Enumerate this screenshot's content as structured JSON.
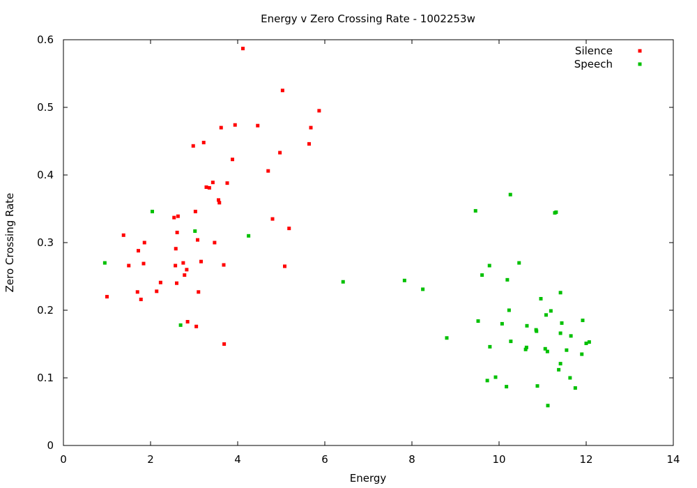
{
  "chart_data": {
    "type": "scatter",
    "title": "Energy v Zero Crossing Rate - 1002253w",
    "xlabel": "Energy",
    "ylabel": "Zero Crossing Rate",
    "xlim": [
      0,
      14
    ],
    "ylim": [
      0,
      0.6
    ],
    "xticks": [
      0,
      2,
      4,
      6,
      8,
      10,
      12,
      14
    ],
    "xtick_labels": [
      "0",
      "2",
      "4",
      "6",
      "8",
      "10",
      "12",
      "14"
    ],
    "yticks": [
      0,
      0.1,
      0.2,
      0.3,
      0.4,
      0.5,
      0.6
    ],
    "ytick_labels": [
      "0",
      "0.1",
      "0.2",
      "0.3",
      "0.4",
      "0.5",
      "0.6"
    ],
    "grid": false,
    "legend_position": "top-right",
    "series": [
      {
        "name": "Silence",
        "color": "#ff0000",
        "points": [
          [
            1.0,
            0.22
          ],
          [
            1.38,
            0.311
          ],
          [
            1.5,
            0.266
          ],
          [
            1.7,
            0.227
          ],
          [
            1.72,
            0.288
          ],
          [
            1.78,
            0.216
          ],
          [
            1.84,
            0.269
          ],
          [
            1.86,
            0.3
          ],
          [
            2.14,
            0.228
          ],
          [
            2.23,
            0.241
          ],
          [
            2.54,
            0.337
          ],
          [
            2.57,
            0.266
          ],
          [
            2.58,
            0.291
          ],
          [
            2.6,
            0.24
          ],
          [
            2.61,
            0.315
          ],
          [
            2.63,
            0.339
          ],
          [
            2.75,
            0.27
          ],
          [
            2.78,
            0.252
          ],
          [
            2.83,
            0.26
          ],
          [
            2.85,
            0.183
          ],
          [
            2.98,
            0.443
          ],
          [
            3.03,
            0.346
          ],
          [
            3.05,
            0.176
          ],
          [
            3.08,
            0.304
          ],
          [
            3.1,
            0.227
          ],
          [
            3.16,
            0.272
          ],
          [
            3.22,
            0.448
          ],
          [
            3.28,
            0.382
          ],
          [
            3.35,
            0.381
          ],
          [
            3.43,
            0.389
          ],
          [
            3.47,
            0.3
          ],
          [
            3.56,
            0.363
          ],
          [
            3.58,
            0.359
          ],
          [
            3.62,
            0.47
          ],
          [
            3.68,
            0.267
          ],
          [
            3.69,
            0.15
          ],
          [
            3.76,
            0.388
          ],
          [
            3.88,
            0.423
          ],
          [
            3.94,
            0.474
          ],
          [
            4.12,
            0.587
          ],
          [
            4.46,
            0.473
          ],
          [
            4.7,
            0.406
          ],
          [
            4.8,
            0.335
          ],
          [
            4.97,
            0.433
          ],
          [
            5.03,
            0.525
          ],
          [
            5.08,
            0.265
          ],
          [
            5.18,
            0.321
          ],
          [
            5.64,
            0.446
          ],
          [
            5.68,
            0.47
          ],
          [
            5.87,
            0.495
          ]
        ]
      },
      {
        "name": "Speech",
        "color": "#00c000",
        "points": [
          [
            0.95,
            0.27
          ],
          [
            2.04,
            0.346
          ],
          [
            2.69,
            0.178
          ],
          [
            3.02,
            0.317
          ],
          [
            4.25,
            0.31
          ],
          [
            6.42,
            0.242
          ],
          [
            7.83,
            0.244
          ],
          [
            8.25,
            0.231
          ],
          [
            8.8,
            0.159
          ],
          [
            9.46,
            0.347
          ],
          [
            9.52,
            0.184
          ],
          [
            9.61,
            0.252
          ],
          [
            9.73,
            0.096
          ],
          [
            9.78,
            0.266
          ],
          [
            9.79,
            0.146
          ],
          [
            9.92,
            0.101
          ],
          [
            10.07,
            0.18
          ],
          [
            10.17,
            0.087
          ],
          [
            10.19,
            0.245
          ],
          [
            10.23,
            0.2
          ],
          [
            10.26,
            0.371
          ],
          [
            10.27,
            0.154
          ],
          [
            10.46,
            0.27
          ],
          [
            10.61,
            0.142
          ],
          [
            10.63,
            0.145
          ],
          [
            10.64,
            0.177
          ],
          [
            10.85,
            0.171
          ],
          [
            10.86,
            0.169
          ],
          [
            10.88,
            0.088
          ],
          [
            10.96,
            0.217
          ],
          [
            11.06,
            0.143
          ],
          [
            11.08,
            0.193
          ],
          [
            11.11,
            0.139
          ],
          [
            11.12,
            0.059
          ],
          [
            11.19,
            0.199
          ],
          [
            11.28,
            0.344
          ],
          [
            11.31,
            0.345
          ],
          [
            11.37,
            0.112
          ],
          [
            11.41,
            0.226
          ],
          [
            11.41,
            0.166
          ],
          [
            11.41,
            0.121
          ],
          [
            11.44,
            0.181
          ],
          [
            11.55,
            0.141
          ],
          [
            11.63,
            0.1
          ],
          [
            11.65,
            0.162
          ],
          [
            11.75,
            0.085
          ],
          [
            11.9,
            0.135
          ],
          [
            11.92,
            0.185
          ],
          [
            12.0,
            0.151
          ],
          [
            12.07,
            0.153
          ]
        ]
      }
    ]
  }
}
